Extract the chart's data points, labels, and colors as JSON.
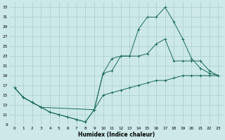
{
  "xlabel": "Humidex (Indice chaleur)",
  "background_color": "#cce8e8",
  "grid_color": "#aacccc",
  "line_color": "#1a6b5a",
  "xlim": [
    -0.5,
    23.5
  ],
  "ylim": [
    9,
    34
  ],
  "yticks": [
    9,
    11,
    13,
    15,
    17,
    19,
    21,
    23,
    25,
    27,
    29,
    31,
    33
  ],
  "xticks": [
    0,
    1,
    2,
    3,
    4,
    5,
    6,
    7,
    8,
    9,
    10,
    11,
    12,
    13,
    14,
    15,
    16,
    17,
    18,
    19,
    20,
    21,
    22,
    23
  ],
  "line1_x": [
    0,
    1,
    2,
    3,
    4,
    5,
    6,
    7,
    8,
    9,
    10,
    11,
    12,
    13,
    14,
    15,
    16,
    17,
    18,
    19,
    20,
    21,
    22,
    23
  ],
  "line1_y": [
    16.5,
    14.5,
    13.5,
    12.5,
    11.5,
    11.0,
    10.5,
    10.0,
    9.5,
    12.0,
    15.0,
    15.5,
    16.0,
    16.5,
    17.0,
    17.5,
    18.0,
    18.0,
    18.5,
    19.0,
    19.0,
    19.0,
    19.0,
    19.0
  ],
  "line2_x": [
    0,
    1,
    2,
    3,
    4,
    5,
    6,
    7,
    8,
    9,
    10,
    11,
    12,
    13,
    14,
    15,
    16,
    17,
    18,
    19,
    20,
    21,
    22,
    23
  ],
  "line2_y": [
    16.5,
    14.5,
    13.5,
    12.5,
    11.5,
    11.0,
    10.5,
    10.0,
    9.5,
    12.0,
    19.5,
    20.0,
    23.0,
    23.0,
    23.0,
    23.5,
    25.5,
    26.5,
    22.0,
    22.0,
    22.0,
    22.0,
    20.0,
    19.0
  ],
  "line3_x": [
    0,
    1,
    2,
    3,
    9,
    10,
    11,
    12,
    13,
    14,
    15,
    16,
    17,
    18,
    19,
    20,
    21,
    22,
    23
  ],
  "line3_y": [
    16.5,
    14.5,
    13.5,
    12.5,
    12.0,
    19.5,
    22.5,
    23.0,
    23.0,
    28.5,
    31.0,
    31.0,
    33.0,
    30.0,
    26.5,
    22.5,
    20.5,
    19.5,
    19.0
  ]
}
